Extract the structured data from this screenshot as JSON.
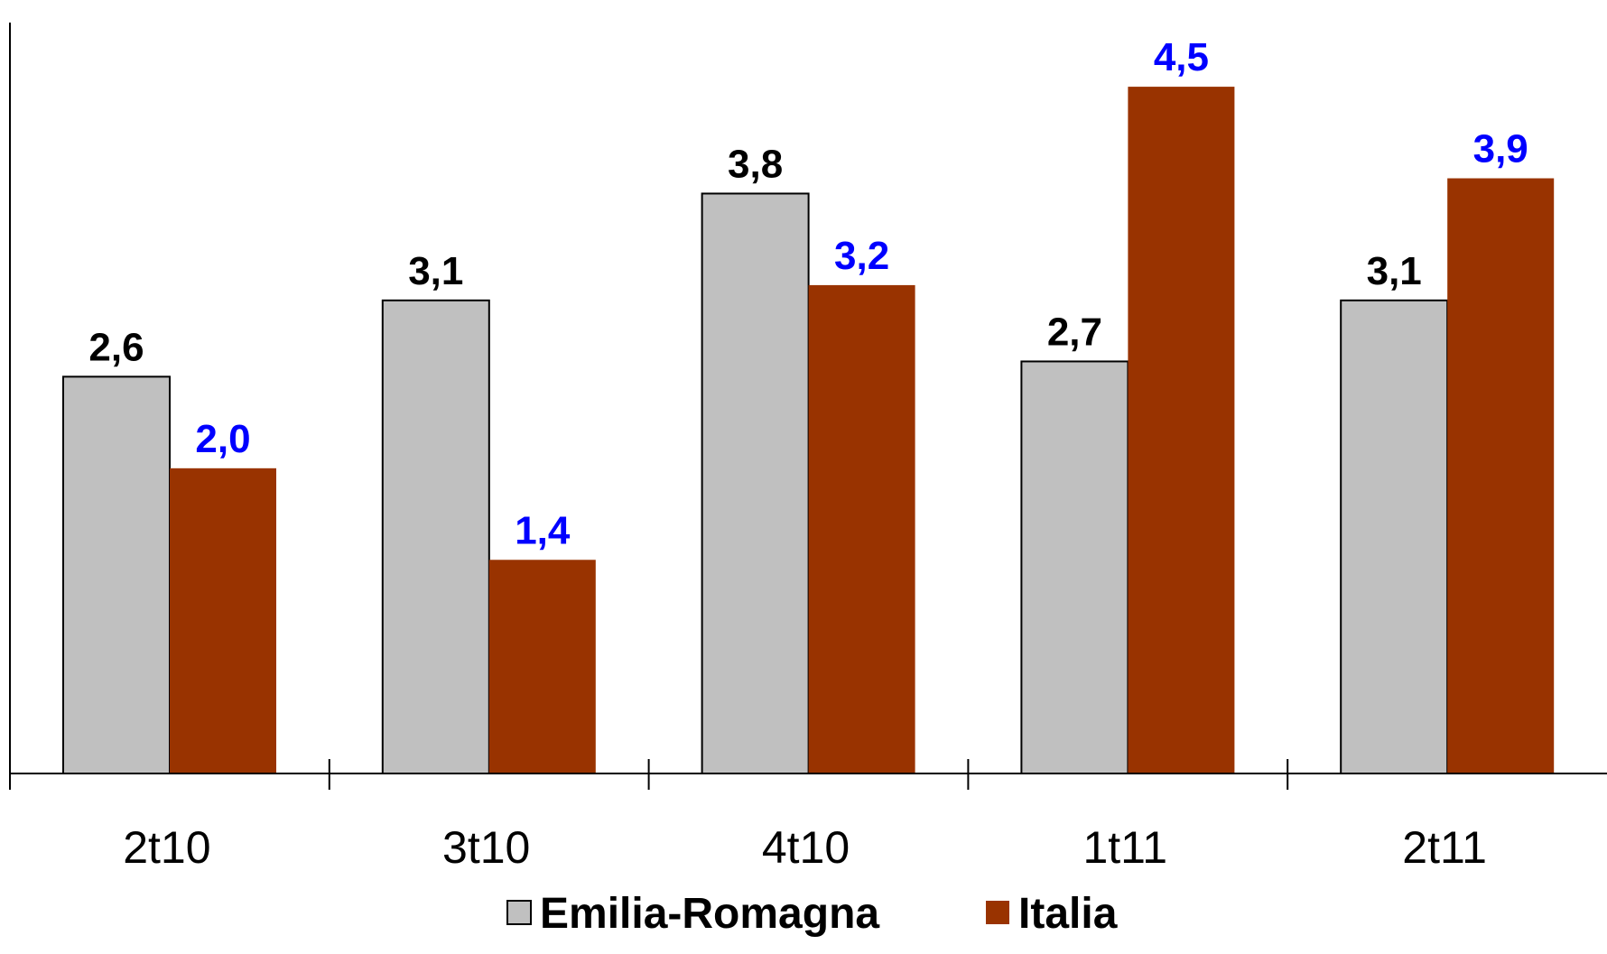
{
  "chart_data": {
    "type": "bar",
    "categories": [
      "2t10",
      "3t10",
      "4t10",
      "1t11",
      "2t11"
    ],
    "series": [
      {
        "name": "Emilia-Romagna",
        "values": [
          2.6,
          3.1,
          3.8,
          2.7,
          3.1
        ],
        "labels": [
          "2,6",
          "3,1",
          "3,8",
          "2,7",
          "3,1"
        ],
        "color": "#c0c0c0",
        "label_color": "#000000"
      },
      {
        "name": "Italia",
        "values": [
          2.0,
          1.4,
          3.2,
          4.5,
          3.9
        ],
        "labels": [
          "2,0",
          "1,4",
          "3,2",
          "4,5",
          "3,9"
        ],
        "color": "#993300",
        "label_color": "#0000ff"
      }
    ],
    "ylim": [
      0,
      4.95
    ],
    "grid": false,
    "legend_position": "bottom-center"
  }
}
